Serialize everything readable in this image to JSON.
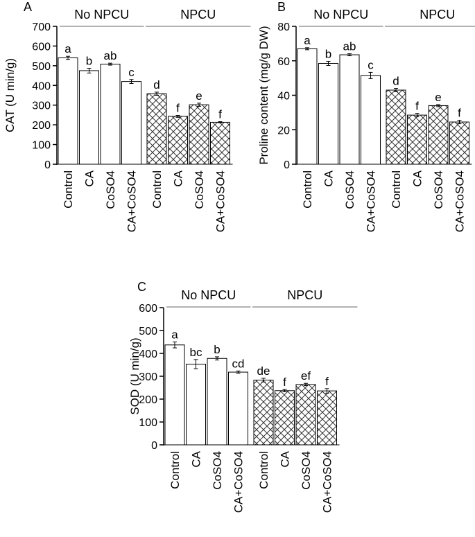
{
  "chart_data": [
    {
      "type": "bar",
      "panel": "A",
      "title": "",
      "ylabel": "CAT (U min/g)",
      "xlabel": "",
      "ylim": [
        0,
        700
      ],
      "yticks": [
        0,
        100,
        200,
        300,
        400,
        500,
        600,
        700
      ],
      "categories": [
        "Control",
        "CA",
        "CoSO4",
        "CA+CoSO4",
        "Control",
        "CA",
        "CoSO4",
        "CA+CoSO4"
      ],
      "groups": [
        {
          "label": "No NPCU",
          "pattern": "plain",
          "bars": [
            0,
            1,
            2,
            3
          ]
        },
        {
          "label": "NPCU",
          "pattern": "hatched",
          "bars": [
            4,
            5,
            6,
            7
          ]
        }
      ],
      "values": [
        540,
        475,
        508,
        420,
        358,
        243,
        302,
        213
      ],
      "errors": [
        8,
        12,
        5,
        10,
        8,
        5,
        8,
        3
      ],
      "letters": [
        "a",
        "b",
        "ab",
        "c",
        "d",
        "f",
        "e",
        "f"
      ]
    },
    {
      "type": "bar",
      "panel": "B",
      "title": "",
      "ylabel": "Proline content (mg/g DW)",
      "xlabel": "",
      "ylim": [
        0,
        80
      ],
      "yticks": [
        0,
        20,
        40,
        60,
        80
      ],
      "categories": [
        "Control",
        "CA",
        "CoSO4",
        "CA+CoSO4",
        "Control",
        "CA",
        "CoSO4",
        "CA+CoSO4"
      ],
      "groups": [
        {
          "label": "No NPCU",
          "pattern": "plain",
          "bars": [
            0,
            1,
            2,
            3
          ]
        },
        {
          "label": "NPCU",
          "pattern": "hatched",
          "bars": [
            4,
            5,
            6,
            7
          ]
        }
      ],
      "values": [
        67,
        58.5,
        63.5,
        51.5,
        43,
        28.5,
        34,
        24.5
      ],
      "errors": [
        0.6,
        1.2,
        0.6,
        1.8,
        1.0,
        1.0,
        0.6,
        1.0
      ],
      "letters": [
        "a",
        "b",
        "ab",
        "c",
        "d",
        "f",
        "e",
        "f"
      ]
    },
    {
      "type": "bar",
      "panel": "C",
      "title": "",
      "ylabel": "SOD (U min/g)",
      "xlabel": "",
      "ylim": [
        0,
        600
      ],
      "yticks": [
        0,
        100,
        200,
        300,
        400,
        500,
        600
      ],
      "categories": [
        "Control",
        "CA",
        "CoSO4",
        "CA+CoSO4",
        "Control",
        "CA",
        "CoSO4",
        "CA+CoSO4"
      ],
      "groups": [
        {
          "label": "No NPCU",
          "pattern": "plain",
          "bars": [
            0,
            1,
            2,
            3
          ]
        },
        {
          "label": "NPCU",
          "pattern": "hatched",
          "bars": [
            4,
            5,
            6,
            7
          ]
        }
      ],
      "values": [
        437,
        353,
        378,
        318,
        283,
        237,
        264,
        236
      ],
      "errors": [
        13,
        20,
        7,
        5,
        8,
        5,
        5,
        10
      ],
      "letters": [
        "a",
        "bc",
        "b",
        "cd",
        "de",
        "f",
        "ef",
        "f"
      ]
    }
  ]
}
